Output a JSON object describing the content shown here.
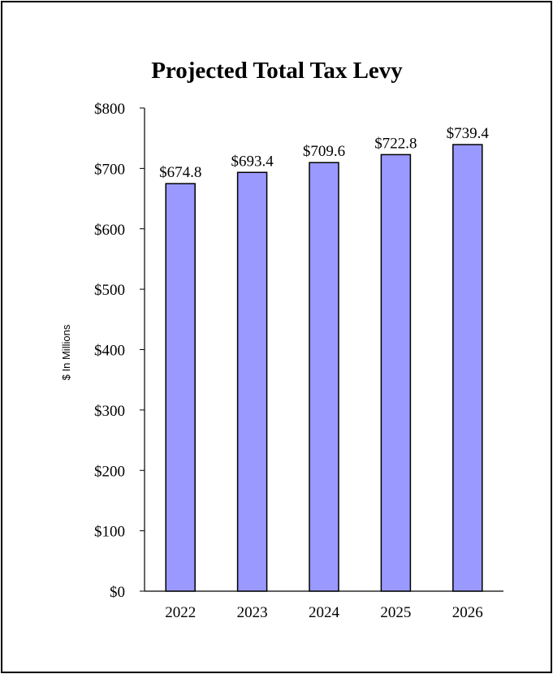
{
  "chart_data": {
    "type": "bar",
    "title": "Projected Total Tax Levy",
    "xlabel": "",
    "ylabel": "$ In Millions",
    "categories": [
      "2022",
      "2023",
      "2024",
      "2025",
      "2026"
    ],
    "values": [
      674.8,
      693.4,
      709.6,
      722.8,
      739.4
    ],
    "data_labels": [
      "$674.8",
      "$693.4",
      "$709.6",
      "$722.8",
      "$739.4"
    ],
    "ylim": [
      0,
      800
    ],
    "y_ticks": [
      0,
      100,
      200,
      300,
      400,
      500,
      600,
      700,
      800
    ],
    "y_tick_labels": [
      "$0",
      "$100",
      "$200",
      "$300",
      "$400",
      "$500",
      "$600",
      "$700",
      "$800"
    ],
    "grid": false,
    "legend": "none",
    "colors": {
      "bar_fill": "#9999ff",
      "bar_stroke": "#000000",
      "axis": "#000000",
      "frame": "#000000"
    }
  }
}
